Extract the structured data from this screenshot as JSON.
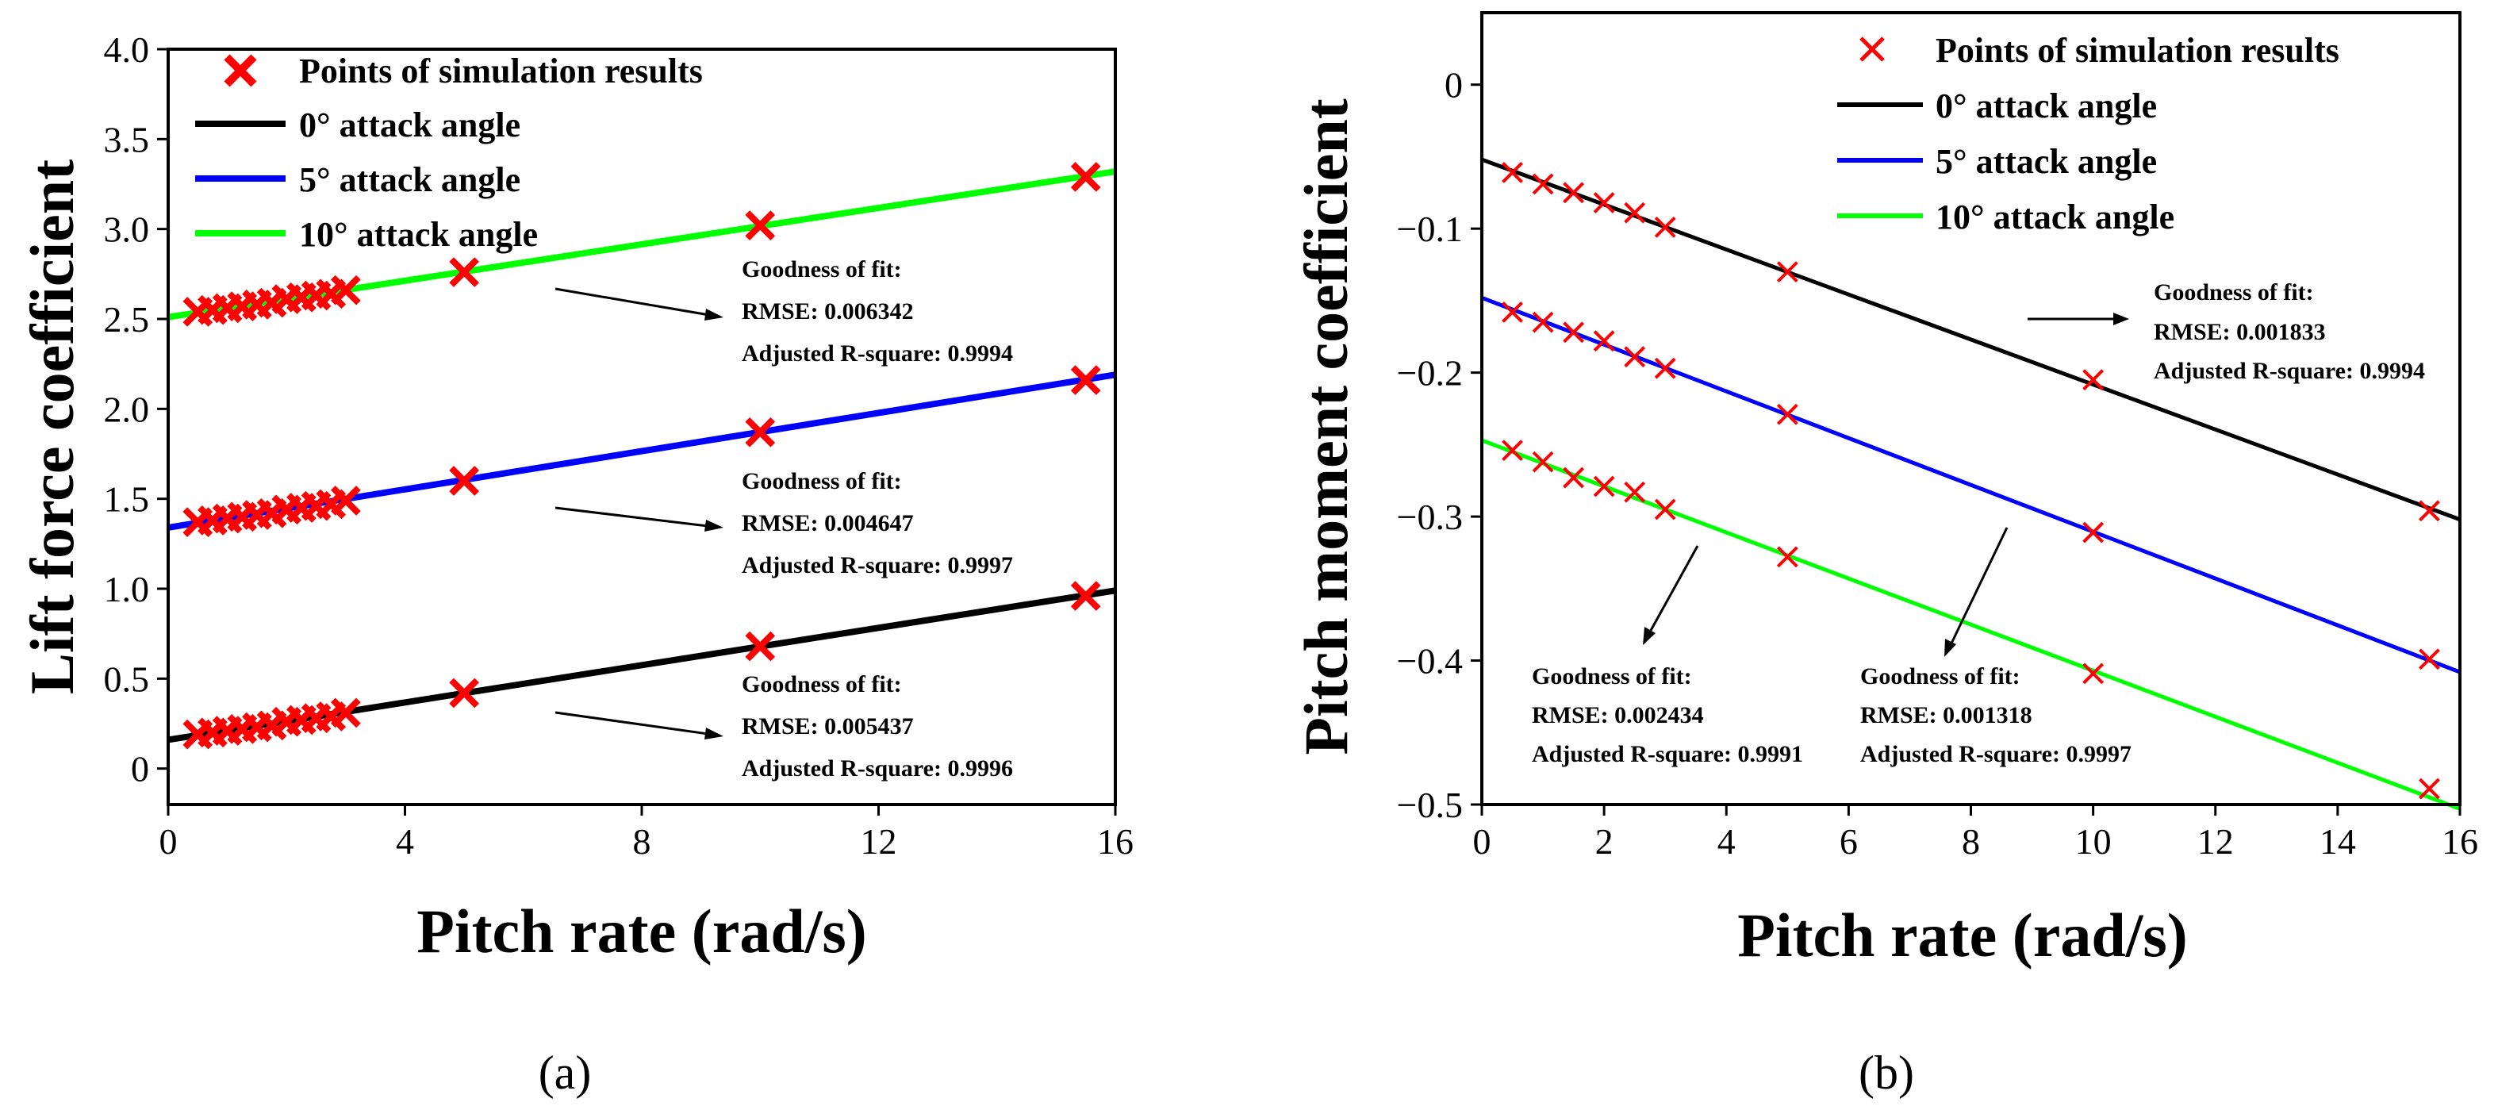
{
  "colors": {
    "black": "#000000",
    "blue": "#0000ff",
    "green": "#00ff00",
    "marker": "#ff0000"
  },
  "chart_data": [
    {
      "type": "line",
      "panel_label": "(a)",
      "title": "",
      "xlabel": "Pitch rate (rad/s)",
      "ylabel": "Lift force coefficient",
      "xlim": [
        0,
        16
      ],
      "ylim": [
        -0.2,
        4.0
      ],
      "xticks": [
        0,
        4,
        8,
        12,
        16
      ],
      "yticks": [
        0,
        0.5,
        1.0,
        1.5,
        2.0,
        2.5,
        3.0,
        3.5,
        4.0
      ],
      "ytick_labels": [
        "0",
        "0.5",
        "1.0",
        "1.5",
        "2.0",
        "2.5",
        "3.0",
        "3.5",
        "4.0"
      ],
      "grid": false,
      "legend": {
        "placement": "top-left",
        "entries": [
          {
            "label": "Points of simulation results",
            "kind": "marker",
            "color": "#ff0000"
          },
          {
            "label": "0° attack angle",
            "kind": "line",
            "color": "#000000"
          },
          {
            "label": "5° attack angle",
            "kind": "line",
            "color": "#0000ff"
          },
          {
            "label": "10° attack angle",
            "kind": "line",
            "color": "#00ff00"
          }
        ]
      },
      "series": [
        {
          "name": "0° attack angle",
          "color": "#000000",
          "fit": [
            0,
            0.16,
            16,
            0.99
          ],
          "x": [
            0.5,
            0.75,
            1,
            1.25,
            1.5,
            1.75,
            2,
            2.25,
            2.5,
            2.75,
            3,
            5,
            10,
            15.5
          ],
          "y": [
            0.19,
            0.2,
            0.21,
            0.22,
            0.23,
            0.24,
            0.26,
            0.27,
            0.28,
            0.29,
            0.31,
            0.42,
            0.68,
            0.96
          ]
        },
        {
          "name": "5° attack angle",
          "color": "#0000ff",
          "fit": [
            0,
            1.34,
            16,
            2.19
          ],
          "x": [
            0.5,
            0.75,
            1,
            1.25,
            1.5,
            1.75,
            2,
            2.25,
            2.5,
            2.75,
            3,
            5,
            10,
            15.5
          ],
          "y": [
            1.37,
            1.38,
            1.39,
            1.4,
            1.41,
            1.42,
            1.44,
            1.45,
            1.46,
            1.47,
            1.49,
            1.6,
            1.87,
            2.16
          ]
        },
        {
          "name": "10° attack angle",
          "color": "#00ff00",
          "fit": [
            0,
            2.51,
            16,
            3.32
          ],
          "x": [
            0.5,
            0.75,
            1,
            1.25,
            1.5,
            1.75,
            2,
            2.25,
            2.5,
            2.75,
            3,
            5,
            10,
            15.5
          ],
          "y": [
            2.54,
            2.55,
            2.56,
            2.57,
            2.58,
            2.59,
            2.61,
            2.62,
            2.63,
            2.64,
            2.66,
            2.76,
            3.02,
            3.29
          ]
        }
      ],
      "annotations": [
        {
          "series": "10° attack angle",
          "heading": "Goodness of fit:",
          "rmse": "RMSE: 0.006342",
          "r2": "Adjusted R-square: 0.9994"
        },
        {
          "series": "5° attack angle",
          "heading": "Goodness of fit:",
          "rmse": "RMSE: 0.004647",
          "r2": "Adjusted R-square: 0.9997"
        },
        {
          "series": "0° attack angle",
          "heading": "Goodness of fit:",
          "rmse": "RMSE: 0.005437",
          "r2": "Adjusted R-square: 0.9996"
        }
      ]
    },
    {
      "type": "line",
      "panel_label": "(b)",
      "title": "",
      "xlabel": "Pitch rate (rad/s)",
      "ylabel": "Pitch moment coefficient",
      "xlim": [
        0,
        16
      ],
      "ylim": [
        -0.5,
        0.05
      ],
      "xticks": [
        0,
        2,
        4,
        6,
        8,
        10,
        12,
        14,
        16
      ],
      "yticks": [
        0,
        -0.1,
        -0.2,
        -0.3,
        -0.4,
        -0.5
      ],
      "ytick_labels": [
        "0",
        "−0.1",
        "−0.2",
        "−0.3",
        "−0.4",
        "−0.5"
      ],
      "grid": false,
      "legend": {
        "placement": "top-right",
        "entries": [
          {
            "label": "Points of simulation results",
            "kind": "marker",
            "color": "#ff0000"
          },
          {
            "label": "0° attack angle",
            "kind": "line",
            "color": "#000000"
          },
          {
            "label": "5° attack angle",
            "kind": "line",
            "color": "#0000ff"
          },
          {
            "label": "10° attack angle",
            "kind": "line",
            "color": "#00ff00"
          }
        ]
      },
      "series": [
        {
          "name": "0° attack angle",
          "color": "#000000",
          "fit": [
            0,
            -0.052,
            16,
            -0.302
          ],
          "x": [
            0.5,
            1,
            1.5,
            2,
            2.5,
            3,
            5,
            10,
            15.5
          ],
          "y": [
            -0.061,
            -0.069,
            -0.075,
            -0.082,
            -0.089,
            -0.099,
            -0.13,
            -0.205,
            -0.296
          ]
        },
        {
          "name": "5° attack angle",
          "color": "#0000ff",
          "fit": [
            0,
            -0.148,
            16,
            -0.408
          ],
          "x": [
            0.5,
            1,
            1.5,
            2,
            2.5,
            3,
            5,
            10,
            15.5
          ],
          "y": [
            -0.158,
            -0.165,
            -0.172,
            -0.178,
            -0.189,
            -0.197,
            -0.229,
            -0.311,
            -0.399
          ]
        },
        {
          "name": "10° attack angle",
          "color": "#00ff00",
          "fit": [
            0,
            -0.247,
            16,
            -0.503
          ],
          "x": [
            0.5,
            1,
            1.5,
            2,
            2.5,
            3,
            5,
            10,
            15.5
          ],
          "y": [
            -0.254,
            -0.262,
            -0.273,
            -0.279,
            -0.283,
            -0.295,
            -0.328,
            -0.409,
            -0.489
          ]
        }
      ],
      "annotations": [
        {
          "series": "0° attack angle",
          "heading": "Goodness of fit:",
          "rmse": "RMSE: 0.001833",
          "r2": "Adjusted R-square: 0.9994"
        },
        {
          "series": "10° attack angle",
          "heading": "Goodness of fit:",
          "rmse": "RMSE: 0.002434",
          "r2": "Adjusted R-square: 0.9991"
        },
        {
          "series": "5° attack angle",
          "heading": "Goodness of fit:",
          "rmse": "RMSE: 0.001318",
          "r2": "Adjusted R-square: 0.9997"
        }
      ]
    }
  ]
}
